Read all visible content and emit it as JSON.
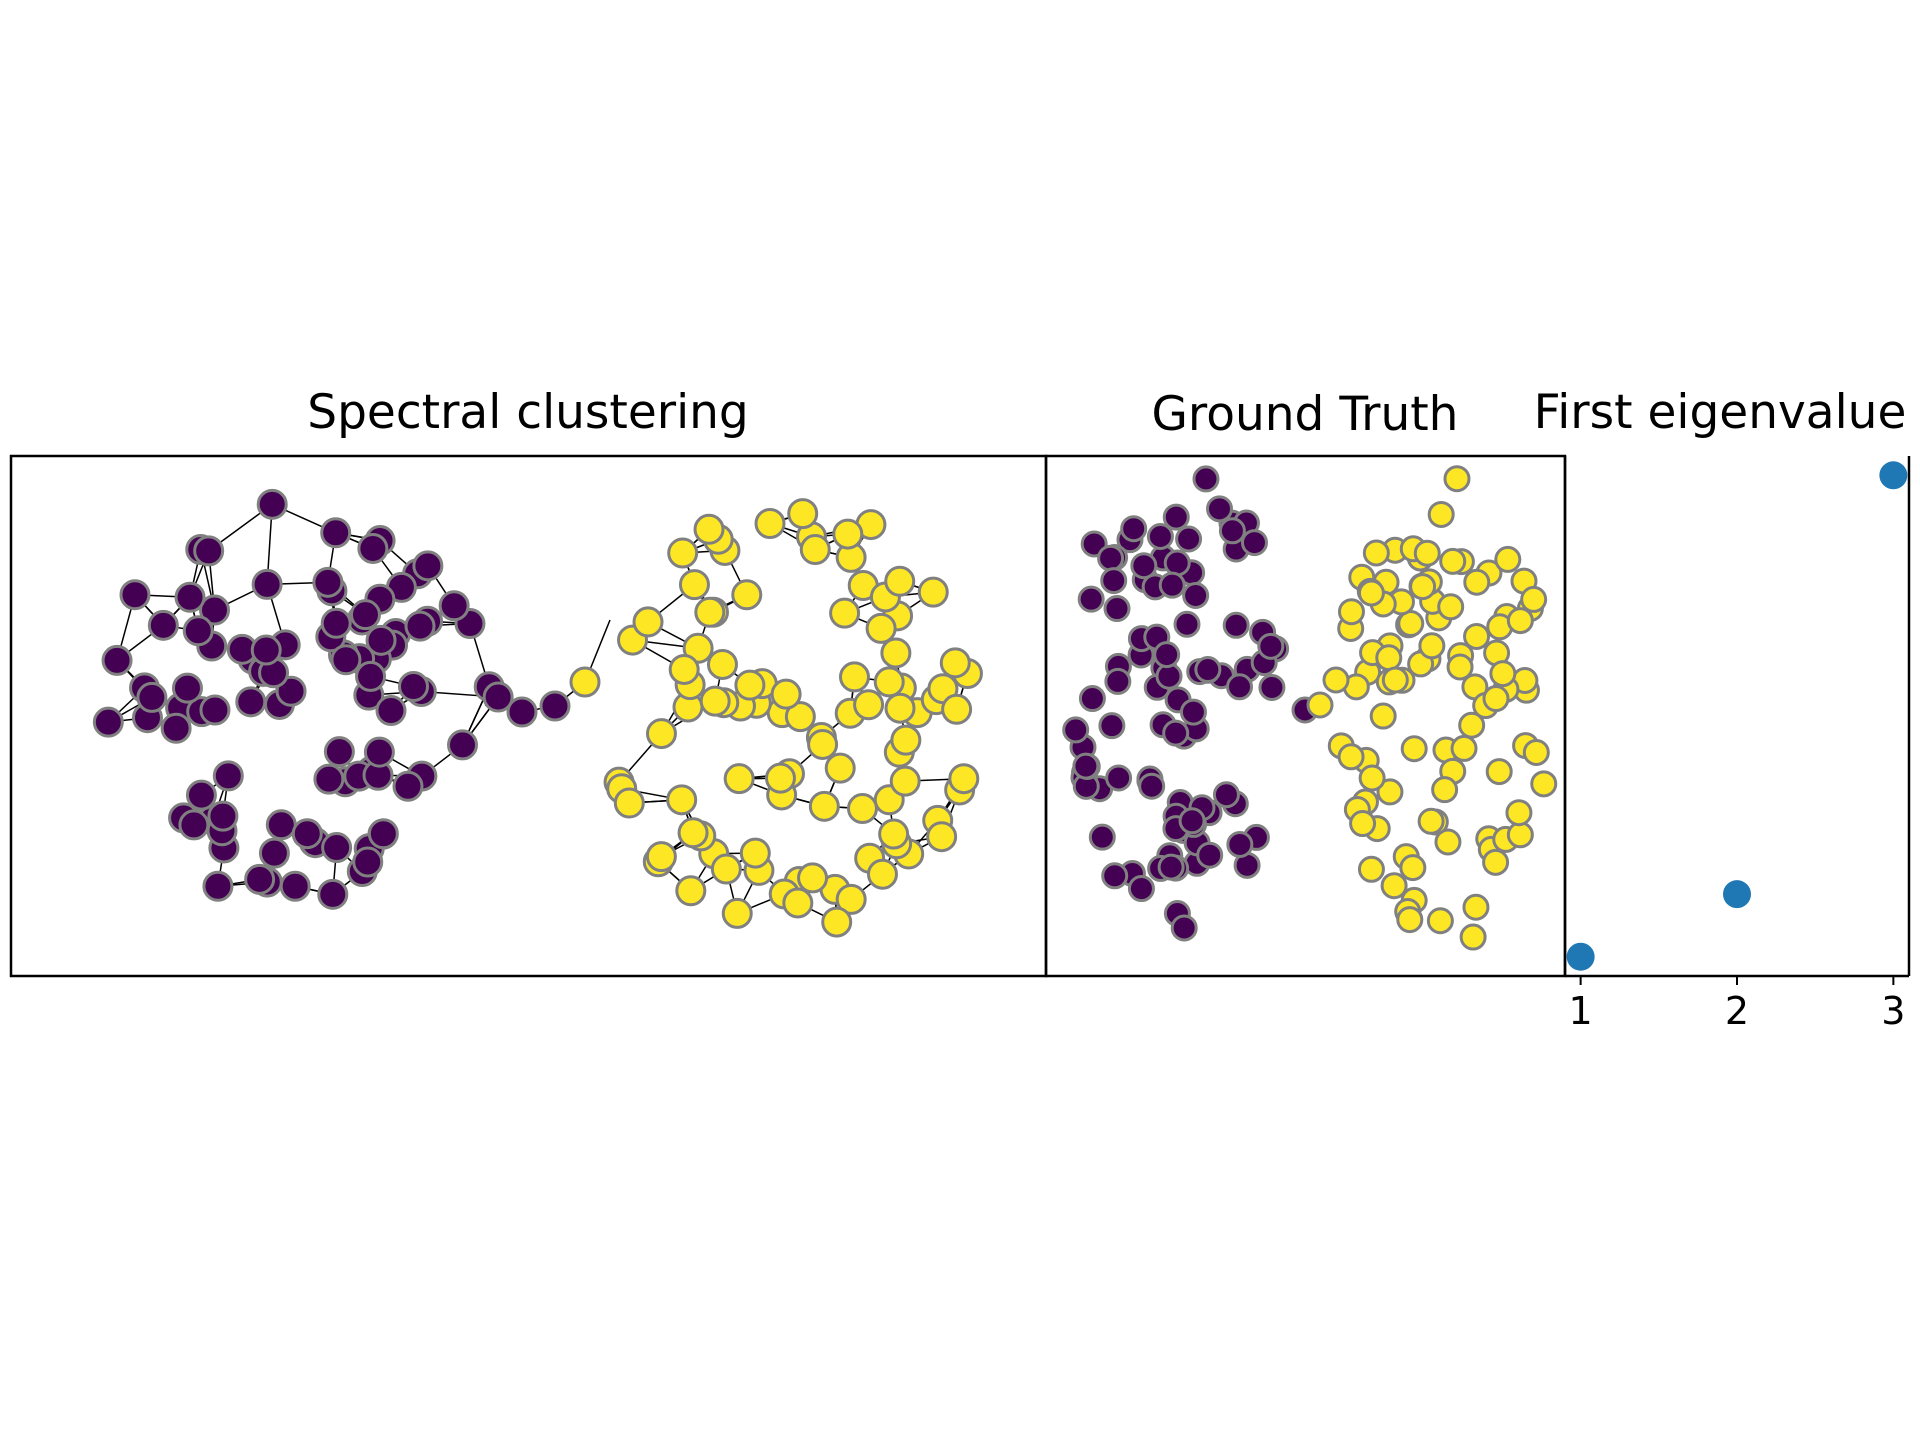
{
  "colors": {
    "cluster_a": "#440154",
    "cluster_b": "#fde725",
    "node_edge": "#808080",
    "graph_edge": "#000000",
    "eigen_marker": "#1f77b4"
  },
  "chart_data": [
    {
      "type": "graph",
      "title": "Spectral clustering",
      "groups": [
        "cluster_a",
        "cluster_b"
      ],
      "show_edges": true,
      "axes_ticks": false
    },
    {
      "type": "graph",
      "title": "Ground Truth",
      "groups": [
        "cluster_a",
        "cluster_b"
      ],
      "show_edges": false,
      "axes_ticks": false
    },
    {
      "type": "scatter",
      "title": "First eigenvalue",
      "x": [
        1,
        2,
        3
      ],
      "y": [
        0.0,
        0.13,
        1.0
      ],
      "xticks": [
        "1",
        "2",
        "3"
      ],
      "xlim": [
        0.9,
        3.1
      ],
      "y_ticks_shown": false,
      "marker_color": "#1f77b4"
    }
  ]
}
